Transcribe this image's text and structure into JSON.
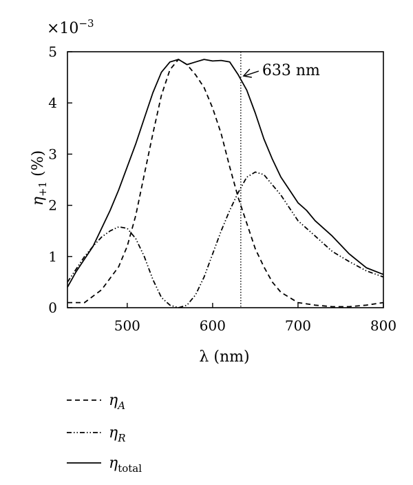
{
  "chart_data": {
    "type": "line",
    "xlabel": "λ (nm)",
    "ylabel": "η+1 (%)",
    "ylabel_main": "η",
    "ylabel_sub": "+1",
    "ylabel_unit": " (%)",
    "y_multiplier": "×10",
    "y_multiplier_exp": "−3",
    "xlim": [
      430,
      800
    ],
    "ylim": [
      0,
      5
    ],
    "x_ticks": [
      500,
      600,
      700,
      800
    ],
    "y_ticks": [
      0,
      1,
      2,
      3,
      4,
      5
    ],
    "grid": false,
    "legend_position": "bottom-left",
    "annotations": [
      {
        "text": "633 nm",
        "x": 633,
        "y": 4.5,
        "style": "vertical dotted line at x with arrow"
      }
    ],
    "series": [
      {
        "name": "ηA",
        "name_main": "η",
        "name_sub": "A",
        "style": "dashed",
        "x": [
          430,
          450,
          470,
          490,
          500,
          510,
          520,
          530,
          540,
          550,
          560,
          570,
          580,
          590,
          600,
          610,
          620,
          630,
          640,
          650,
          660,
          670,
          680,
          700,
          720,
          740,
          760,
          780,
          800
        ],
        "y": [
          0.1,
          0.1,
          0.35,
          0.8,
          1.2,
          1.8,
          2.6,
          3.4,
          4.15,
          4.65,
          4.85,
          4.75,
          4.55,
          4.3,
          3.9,
          3.4,
          2.75,
          2.15,
          1.65,
          1.15,
          0.8,
          0.5,
          0.3,
          0.1,
          0.05,
          0.02,
          0.02,
          0.05,
          0.1
        ]
      },
      {
        "name": "ηR",
        "name_main": "η",
        "name_sub": "R",
        "style": "dash-dot-dot",
        "x": [
          430,
          440,
          450,
          460,
          470,
          480,
          490,
          500,
          510,
          520,
          530,
          540,
          550,
          560,
          570,
          580,
          590,
          600,
          610,
          620,
          630,
          640,
          650,
          660,
          670,
          680,
          700,
          720,
          740,
          760,
          780,
          800
        ],
        "y": [
          0.5,
          0.75,
          1.0,
          1.2,
          1.38,
          1.5,
          1.58,
          1.55,
          1.35,
          1.0,
          0.55,
          0.2,
          0.05,
          0.0,
          0.05,
          0.25,
          0.6,
          1.05,
          1.5,
          1.9,
          2.25,
          2.55,
          2.65,
          2.6,
          2.4,
          2.2,
          1.7,
          1.4,
          1.1,
          0.9,
          0.72,
          0.6
        ]
      },
      {
        "name": "ηtotal",
        "name_main": "η",
        "name_sub": "total",
        "style": "solid",
        "x": [
          430,
          440,
          450,
          460,
          470,
          480,
          490,
          500,
          510,
          520,
          530,
          540,
          550,
          560,
          570,
          580,
          590,
          600,
          610,
          620,
          630,
          640,
          650,
          660,
          670,
          680,
          690,
          700,
          710,
          720,
          740,
          760,
          780,
          800
        ],
        "y": [
          0.4,
          0.7,
          0.95,
          1.2,
          1.55,
          1.9,
          2.3,
          2.75,
          3.2,
          3.7,
          4.2,
          4.6,
          4.8,
          4.85,
          4.75,
          4.8,
          4.85,
          4.82,
          4.83,
          4.8,
          4.55,
          4.25,
          3.8,
          3.3,
          2.9,
          2.55,
          2.3,
          2.05,
          1.9,
          1.7,
          1.4,
          1.05,
          0.78,
          0.65
        ]
      }
    ]
  }
}
